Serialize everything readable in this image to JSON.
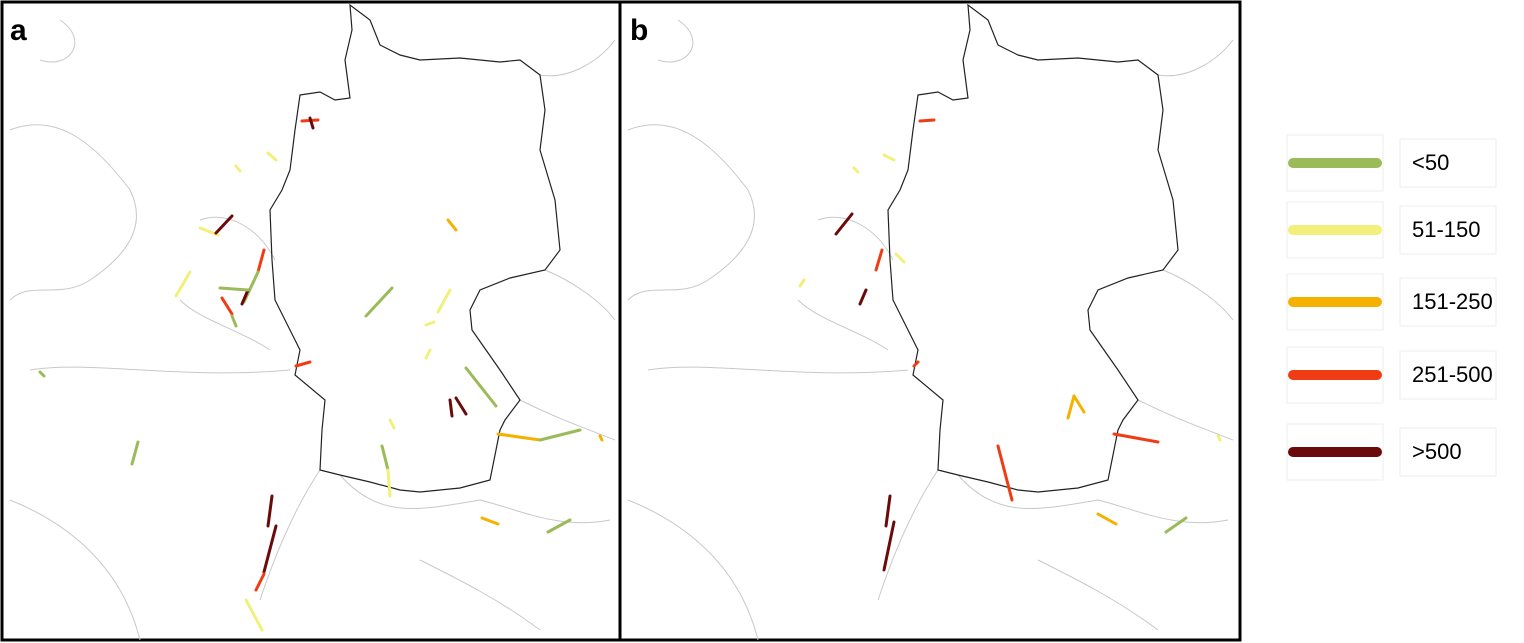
{
  "panels": [
    {
      "label": "a"
    },
    {
      "label": "b"
    }
  ],
  "legend": [
    {
      "label": "<50",
      "color": "#9bbb59"
    },
    {
      "label": "51-150",
      "color": "#f2f07a"
    },
    {
      "label": "151-250",
      "color": "#f5b000"
    },
    {
      "label": "251-500",
      "color": "#f03c14"
    },
    {
      "label": ">500",
      "color": "#6b0a0a"
    }
  ]
}
